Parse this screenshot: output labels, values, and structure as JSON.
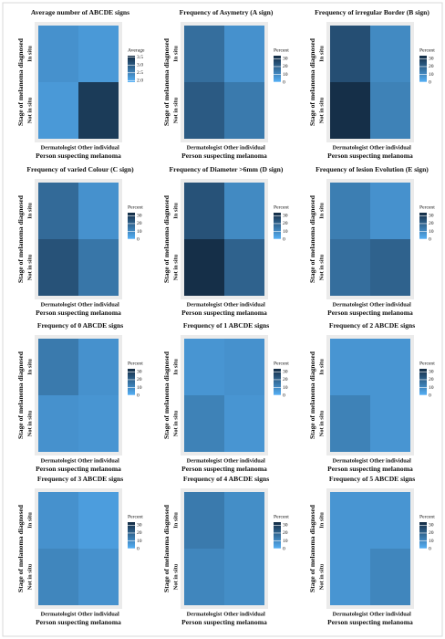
{
  "chart_data": [
    {
      "type": "heatmap",
      "title": "Average number of ABCDE signs",
      "xlabel": "Person suspecting melanoma",
      "ylabel": "Stage of melanoma diagnosed",
      "x_categories": [
        "Dermatologist",
        "Other individual"
      ],
      "y_categories": [
        "In situ",
        "Not in situ"
      ],
      "values": [
        [
          2.3,
          2.2
        ],
        [
          2.2,
          3.4
        ]
      ],
      "legend_title": "Average",
      "clim": [
        1.9,
        3.6
      ],
      "cticks": [
        {
          "value": 2,
          "label": "2.0"
        },
        2.5,
        {
          "value": 3,
          "label": "3.0"
        },
        3.5
      ],
      "color_low": "#56B1F7",
      "color_high": "#132B43"
    },
    {
      "type": "heatmap",
      "title": "Frequency of Asymetry (A sign)",
      "xlabel": "Person suspecting melanoma",
      "ylabel": "Stage of melanoma diagnosed",
      "x_categories": [
        "Dermatologist",
        "Other individual"
      ],
      "y_categories": [
        "In situ",
        "Not in situ"
      ],
      "values": [
        [
          17,
          8
        ],
        [
          22,
          14
        ]
      ],
      "legend_title": "Percent",
      "clim": [
        0,
        34
      ],
      "cticks": [
        0,
        10,
        20,
        30
      ],
      "color_low": "#56B1F7",
      "color_high": "#132B43"
    },
    {
      "type": "heatmap",
      "title": "Frequency of irregular Border (B sign)",
      "xlabel": "Person suspecting melanoma",
      "ylabel": "Stage of melanoma diagnosed",
      "x_categories": [
        "Dermatologist",
        "Other individual"
      ],
      "y_categories": [
        "In situ",
        "Not in situ"
      ],
      "values": [
        [
          25,
          10
        ],
        [
          33,
          12
        ]
      ],
      "legend_title": "Percent",
      "clim": [
        0,
        34
      ],
      "cticks": [
        0,
        10,
        20,
        30
      ],
      "color_low": "#56B1F7",
      "color_high": "#132B43"
    },
    {
      "type": "heatmap",
      "title": "Frequency of varied Colour (C sign)",
      "xlabel": "Person suspecting melanoma",
      "ylabel": "Stage of melanoma diagnosed",
      "x_categories": [
        "Dermatologist",
        "Other individual"
      ],
      "y_categories": [
        "In situ",
        "Not in situ"
      ],
      "values": [
        [
          18,
          8
        ],
        [
          24,
          15
        ]
      ],
      "legend_title": "Percent",
      "clim": [
        0,
        34
      ],
      "cticks": [
        0,
        10,
        20,
        30
      ],
      "color_low": "#56B1F7",
      "color_high": "#132B43"
    },
    {
      "type": "heatmap",
      "title": "Frequency of Diameter >6mm (D sign)",
      "xlabel": "Person suspecting melanoma",
      "ylabel": "Stage of melanoma diagnosed",
      "x_categories": [
        "Dermatologist",
        "Other individual"
      ],
      "y_categories": [
        "In situ",
        "Not in situ"
      ],
      "values": [
        [
          24,
          10
        ],
        [
          33,
          20
        ]
      ],
      "legend_title": "Percent",
      "clim": [
        0,
        34
      ],
      "cticks": [
        0,
        10,
        20,
        30
      ],
      "color_low": "#56B1F7",
      "color_high": "#132B43"
    },
    {
      "type": "heatmap",
      "title": "Frequency of lesion Evolution (E sign)",
      "xlabel": "Person suspecting melanoma",
      "ylabel": "Stage of melanoma diagnosed",
      "x_categories": [
        "Dermatologist",
        "Other individual"
      ],
      "y_categories": [
        "In situ",
        "Not in situ"
      ],
      "values": [
        [
          13,
          8
        ],
        [
          17,
          20
        ]
      ],
      "legend_title": "Percent",
      "clim": [
        0,
        34
      ],
      "cticks": [
        0,
        10,
        20,
        30
      ],
      "color_low": "#56B1F7",
      "color_high": "#132B43"
    },
    {
      "type": "heatmap",
      "title": "Frequency of 0 ABCDE signs",
      "xlabel": "Person suspecting melanoma",
      "ylabel": "Stage of melanoma diagnosed",
      "x_categories": [
        "Dermatologist",
        "Other individual"
      ],
      "y_categories": [
        "In situ",
        "Not in situ"
      ],
      "values": [
        [
          14,
          8
        ],
        [
          8,
          7
        ]
      ],
      "legend_title": "Percent",
      "clim": [
        0,
        34
      ],
      "cticks": [
        0,
        10,
        20,
        30
      ],
      "color_low": "#56B1F7",
      "color_high": "#132B43"
    },
    {
      "type": "heatmap",
      "title": "Frequency of 1 ABCDE signs",
      "xlabel": "Person suspecting melanoma",
      "ylabel": "Stage of melanoma diagnosed",
      "x_categories": [
        "Dermatologist",
        "Other individual"
      ],
      "y_categories": [
        "In situ",
        "Not in situ"
      ],
      "values": [
        [
          7,
          8
        ],
        [
          12,
          7
        ]
      ],
      "legend_title": "Percent",
      "clim": [
        0,
        34
      ],
      "cticks": [
        0,
        10,
        20,
        30
      ],
      "color_low": "#56B1F7",
      "color_high": "#132B43"
    },
    {
      "type": "heatmap",
      "title": "Frequency of 2 ABCDE signs",
      "xlabel": "Person suspecting melanoma",
      "ylabel": "Stage of melanoma diagnosed",
      "x_categories": [
        "Dermatologist",
        "Other individual"
      ],
      "y_categories": [
        "In situ",
        "Not in situ"
      ],
      "values": [
        [
          7,
          7
        ],
        [
          12,
          7
        ]
      ],
      "legend_title": "Percent",
      "clim": [
        0,
        34
      ],
      "cticks": [
        0,
        10,
        20,
        30
      ],
      "color_low": "#56B1F7",
      "color_high": "#132B43"
    },
    {
      "type": "heatmap",
      "title": "Frequency of 3 ABCDE signs",
      "xlabel": "Person suspecting melanoma",
      "ylabel": "Stage of melanoma diagnosed",
      "x_categories": [
        "Dermatologist",
        "Other individual"
      ],
      "y_categories": [
        "In situ",
        "Not in situ"
      ],
      "values": [
        [
          8,
          5
        ],
        [
          11,
          8
        ]
      ],
      "legend_title": "Percent",
      "clim": [
        0,
        34
      ],
      "cticks": [
        0,
        10,
        20,
        30
      ],
      "color_low": "#56B1F7",
      "color_high": "#132B43"
    },
    {
      "type": "heatmap",
      "title": "Frequency of 4 ABCDE signs",
      "xlabel": "Person suspecting melanoma",
      "ylabel": "Stage of melanoma diagnosed",
      "x_categories": [
        "Dermatologist",
        "Other individual"
      ],
      "y_categories": [
        "In situ",
        "Not in situ"
      ],
      "values": [
        [
          14,
          9
        ],
        [
          11,
          9
        ]
      ],
      "legend_title": "Percent",
      "clim": [
        0,
        34
      ],
      "cticks": [
        0,
        10,
        20,
        30
      ],
      "color_low": "#56B1F7",
      "color_high": "#132B43"
    },
    {
      "type": "heatmap",
      "title": "Frequency of 5 ABCDE signs",
      "xlabel": "Person suspecting melanoma",
      "ylabel": "Stage of melanoma diagnosed",
      "x_categories": [
        "Dermatologist",
        "Other individual"
      ],
      "y_categories": [
        "In situ",
        "Not in situ"
      ],
      "values": [
        [
          7,
          7
        ],
        [
          7,
          11
        ]
      ],
      "legend_title": "Percent",
      "clim": [
        0,
        34
      ],
      "cticks": [
        0,
        10,
        20,
        30
      ],
      "color_low": "#56B1F7",
      "color_high": "#132B43"
    }
  ]
}
